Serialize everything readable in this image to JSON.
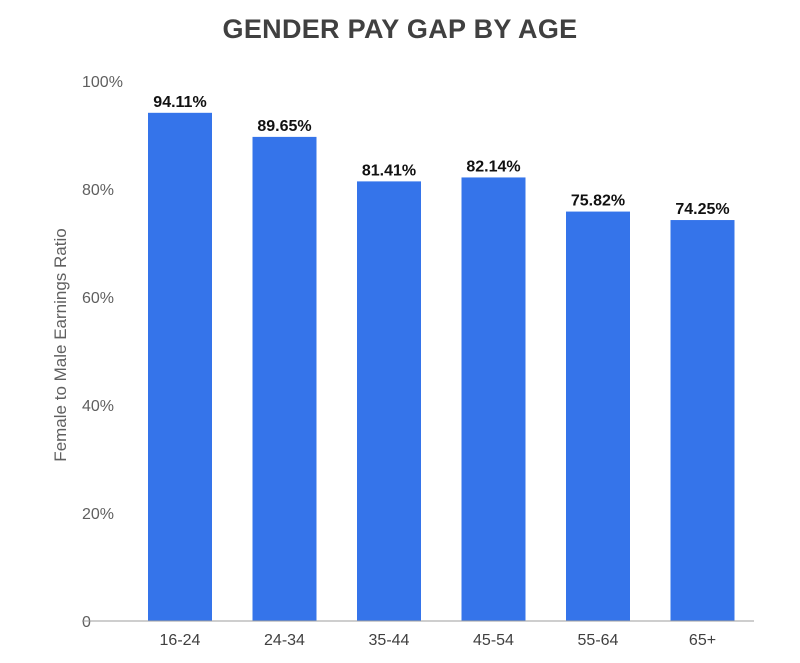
{
  "chart_data": {
    "type": "bar",
    "title": "GENDER PAY GAP BY AGE",
    "xlabel": "",
    "ylabel": "Female to Male Earnings Ratio",
    "categories": [
      "16-24",
      "24-34",
      "35-44",
      "45-54",
      "55-64",
      "65+"
    ],
    "values": [
      94.11,
      89.65,
      81.41,
      82.14,
      75.82,
      74.25
    ],
    "data_labels": [
      "94.11%",
      "89.65%",
      "81.41%",
      "82.14%",
      "75.82%",
      "74.25%"
    ],
    "ylim": [
      0,
      100
    ],
    "yticks": [
      0,
      20,
      40,
      60,
      80,
      100
    ],
    "ytick_labels": [
      "0",
      "20%",
      "40%",
      "60%",
      "80%",
      "100%"
    ],
    "bar_color": "#3574ea",
    "grid": false,
    "legend": "none"
  }
}
